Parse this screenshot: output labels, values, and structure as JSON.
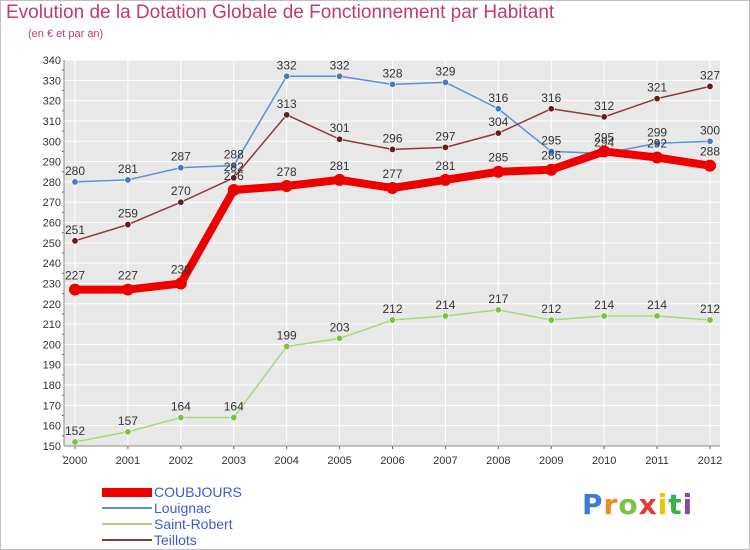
{
  "chart_data": {
    "type": "line",
    "title": "Evolution de la Dotation Globale de Fonctionnement par Habitant",
    "subtitle": "(en € et par an)",
    "xlabel": "",
    "ylabel": "",
    "x": [
      2000,
      2001,
      2002,
      2003,
      2004,
      2005,
      2006,
      2007,
      2008,
      2009,
      2010,
      2011,
      2012
    ],
    "ylim": [
      150,
      340
    ],
    "yticks": [
      150,
      160,
      170,
      180,
      190,
      200,
      210,
      220,
      230,
      240,
      250,
      260,
      270,
      280,
      290,
      300,
      310,
      320,
      330,
      340
    ],
    "grid": true,
    "legend_position": "bottom-left",
    "series": [
      {
        "name": "Louignac",
        "color": "#5b8fd6",
        "marker": "#4a78c4",
        "values": [
          280,
          281,
          287,
          288,
          332,
          332,
          328,
          329,
          316,
          295,
          294,
          299,
          300
        ],
        "labels": [
          "280",
          "281",
          "287",
          "288",
          "332",
          "332",
          "328",
          "329",
          "316",
          "295",
          "294",
          "299",
          "300"
        ]
      },
      {
        "name": "Saint-Robert",
        "color": "#a8d77c",
        "marker": "#7cc241",
        "values": [
          152,
          157,
          164,
          164,
          199,
          203,
          212,
          214,
          217,
          212,
          214,
          214,
          212
        ],
        "labels": [
          "152",
          "157",
          "164",
          "164",
          "199",
          "203",
          "212",
          "214",
          "217",
          "212",
          "214",
          "214",
          "212"
        ]
      },
      {
        "name": "Teillots",
        "color": "#8a3a3a",
        "marker": "#6b1a1a",
        "values": [
          251,
          259,
          270,
          282,
          313,
          301,
          296,
          297,
          304,
          316,
          312,
          321,
          327
        ],
        "labels": [
          "251",
          "259",
          "270",
          "282",
          "313",
          "301",
          "296",
          "297",
          "304",
          "316",
          "312",
          "321",
          "327"
        ]
      },
      {
        "name": "COUBJOURS",
        "color": "#ee0000",
        "marker": "#ee0000",
        "values": [
          227,
          227,
          230,
          276,
          278,
          281,
          277,
          281,
          285,
          286,
          295,
          292,
          288
        ],
        "labels": [
          "227",
          "227",
          "230",
          "276",
          "278",
          "281",
          "277",
          "281",
          "285",
          "286",
          "295",
          "292",
          "288"
        ]
      }
    ],
    "legend": [
      "COUBJOURS",
      "Louignac",
      "Saint-Robert",
      "Teillots"
    ]
  },
  "legend_items": [
    {
      "label": "COUBJOURS",
      "color": "#ee0000"
    },
    {
      "label": "Louignac",
      "color": "#5b8fd6"
    },
    {
      "label": "Saint-Robert",
      "color": "#a8d77c"
    },
    {
      "label": "Teillots",
      "color": "#8a3a3a"
    }
  ],
  "logo": {
    "letters": [
      "P",
      "r",
      "o",
      "x",
      "i",
      "t",
      "i"
    ],
    "colors": [
      "#3a7bd5",
      "#f08a24",
      "#7cc241",
      "#e53935",
      "#f2c200",
      "#3aaf4a",
      "#8e44ad"
    ]
  }
}
